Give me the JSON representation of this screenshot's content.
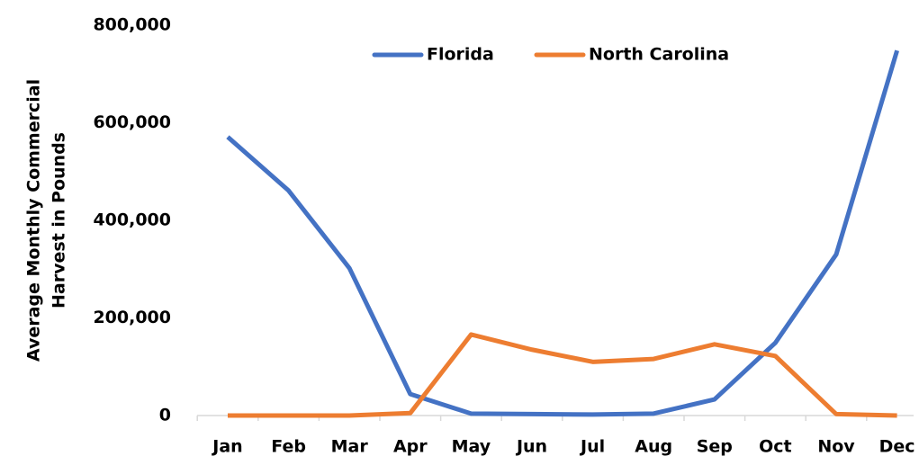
{
  "chart_data": {
    "type": "line",
    "ylabel": [
      "Average Monthly Commercial",
      "Harvest in Pounds"
    ],
    "categories": [
      "Jan",
      "Feb",
      "Mar",
      "Apr",
      "May",
      "Jun",
      "Jul",
      "Aug",
      "Sep",
      "Oct",
      "Nov",
      "Dec"
    ],
    "series": [
      {
        "name": "Florida",
        "color": "#4472c4",
        "values": [
          571000,
          461000,
          302000,
          44000,
          4000,
          3000,
          2000,
          4000,
          33000,
          149000,
          330000,
          748000
        ]
      },
      {
        "name": "North Carolina",
        "color": "#ed7d31",
        "values": [
          0,
          0,
          0,
          5000,
          166000,
          135000,
          110000,
          116000,
          146000,
          122000,
          3000,
          0
        ]
      }
    ],
    "ylim": [
      0,
      800000
    ],
    "yticks": [
      0,
      {
        "value": 200000,
        "label": "200,000"
      },
      {
        "value": 400000,
        "label": "400,000"
      },
      {
        "value": 600000,
        "label": "600,000"
      },
      {
        "value": 800000,
        "label": "800,000"
      }
    ],
    "grid": false,
    "legend": "top"
  }
}
